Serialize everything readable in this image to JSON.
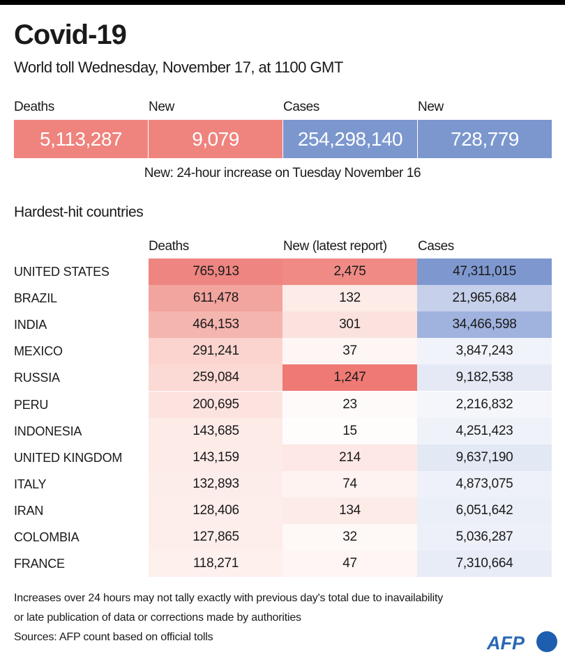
{
  "title": "Covid-19",
  "subtitle": "World toll Wednesday, November 17,  at 1100 GMT",
  "totals": [
    {
      "label": "Deaths",
      "value": "5,113,287",
      "color": "#ef837e"
    },
    {
      "label": "New",
      "value": "9,079",
      "color": "#ef837e"
    },
    {
      "label": "Cases",
      "value": "254,298,140",
      "color": "#7b97ce"
    },
    {
      "label": "New",
      "value": "728,779",
      "color": "#7b97ce"
    }
  ],
  "totals_note": "New: 24-hour increase on Tuesday November 16",
  "section_title": "Hardest-hit countries",
  "chart_data": {
    "type": "table",
    "title": "Hardest-hit countries",
    "columns": [
      "Deaths",
      "New (latest report)",
      "Cases"
    ],
    "rows": [
      {
        "country": "UNITED STATES",
        "deaths": "765,913",
        "new": "2,475",
        "cases": "47,311,015",
        "colors": [
          "#ee8580",
          "#ef8a85",
          "#7e98cf"
        ]
      },
      {
        "country": "BRAZIL",
        "deaths": "611,478",
        "new": "132",
        "cases": "21,965,684",
        "colors": [
          "#f2a49e",
          "#fdebe8",
          "#c6d0ea"
        ]
      },
      {
        "country": "INDIA",
        "deaths": "464,153",
        "new": "301",
        "cases": "34,466,598",
        "colors": [
          "#f4b5ae",
          "#fce2de",
          "#a0b2de"
        ]
      },
      {
        "country": "MEXICO",
        "deaths": "291,241",
        "new": "37",
        "cases": "3,847,243",
        "colors": [
          "#fbd4cf",
          "#fdf6f5",
          "#f1f3fa"
        ]
      },
      {
        "country": "RUSSIA",
        "deaths": "259,084",
        "new": "1,247",
        "cases": "9,182,538",
        "colors": [
          "#fbd9d4",
          "#ef7a74",
          "#e4e9f5"
        ]
      },
      {
        "country": "PERU",
        "deaths": "200,695",
        "new": "23",
        "cases": "2,216,832",
        "colors": [
          "#fde3df",
          "#fefafa",
          "#f5f6fb"
        ]
      },
      {
        "country": "INDONESIA",
        "deaths": "143,685",
        "new": "15",
        "cases": "4,251,423",
        "colors": [
          "#fdebe8",
          "#fffcfc",
          "#eff2f9"
        ]
      },
      {
        "country": "UNITED KINGDOM",
        "deaths": "143,159",
        "new": "214",
        "cases": "9,637,190",
        "colors": [
          "#fdebe8",
          "#fde8e5",
          "#e3e8f5"
        ]
      },
      {
        "country": "ITALY",
        "deaths": "132,893",
        "new": "74",
        "cases": "4,873,075",
        "colors": [
          "#fdedea",
          "#fef3f1",
          "#eef1f9"
        ]
      },
      {
        "country": "IRAN",
        "deaths": "128,406",
        "new": "134",
        "cases": "6,051,642",
        "colors": [
          "#fdeeeb",
          "#fdebe8",
          "#ebeff8"
        ]
      },
      {
        "country": "COLOMBIA",
        "deaths": "127,865",
        "new": "32",
        "cases": "5,036,287",
        "colors": [
          "#fdeeeb",
          "#fef8f7",
          "#edf0f9"
        ]
      },
      {
        "country": "FRANCE",
        "deaths": "118,271",
        "new": "47",
        "cases": "7,310,664",
        "colors": [
          "#fdf0ed",
          "#fef5f4",
          "#e8ecf7"
        ]
      }
    ]
  },
  "footnotes": [
    "Increases over 24 hours may not tally exactly with previous day's total due to inavailability",
    "or late publication of data or corrections made by authorities",
    "Sources: AFP count based on official tolls"
  ],
  "logo_text": "AFP"
}
